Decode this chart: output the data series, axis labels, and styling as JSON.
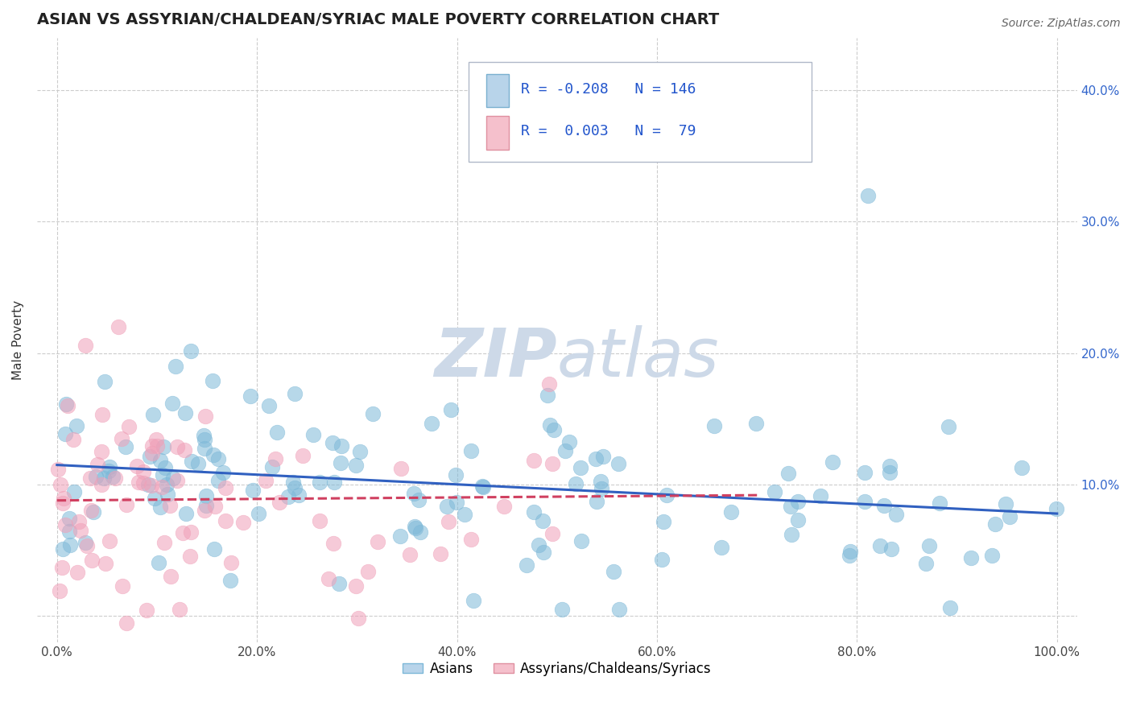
{
  "title": "ASIAN VS ASSYRIAN/CHALDEAN/SYRIAC MALE POVERTY CORRELATION CHART",
  "source": "Source: ZipAtlas.com",
  "ylabel": "Male Poverty",
  "xlim": [
    -0.02,
    1.02
  ],
  "ylim": [
    -0.02,
    0.44
  ],
  "xticks": [
    0.0,
    0.2,
    0.4,
    0.6,
    0.8,
    1.0
  ],
  "xtick_labels": [
    "0.0%",
    "20.0%",
    "40.0%",
    "60.0%",
    "80.0%",
    "100.0%"
  ],
  "yticks": [
    0.0,
    0.1,
    0.2,
    0.3,
    0.4
  ],
  "ytick_labels_right": [
    "",
    "10.0%",
    "20.0%",
    "30.0%",
    "40.0%"
  ],
  "asian_color": "#7db8d8",
  "asian_color_light": "#b8d4ea",
  "assyrian_color": "#f0a0b8",
  "asian_R": -0.208,
  "asian_N": 146,
  "assyrian_R": 0.003,
  "assyrian_N": 79,
  "legend_label_asian": "Asians",
  "legend_label_assyrian": "Assyrians/Chaldeans/Syriacs",
  "background_color": "#ffffff",
  "grid_color": "#cccccc",
  "title_fontsize": 14,
  "axis_label_fontsize": 11,
  "tick_fontsize": 11,
  "watermark_color": "#cdd9e8",
  "source_fontsize": 10,
  "trend_blue": "#3060c0",
  "trend_pink": "#d04060",
  "dot_size": 180,
  "dot_alpha": 0.55
}
